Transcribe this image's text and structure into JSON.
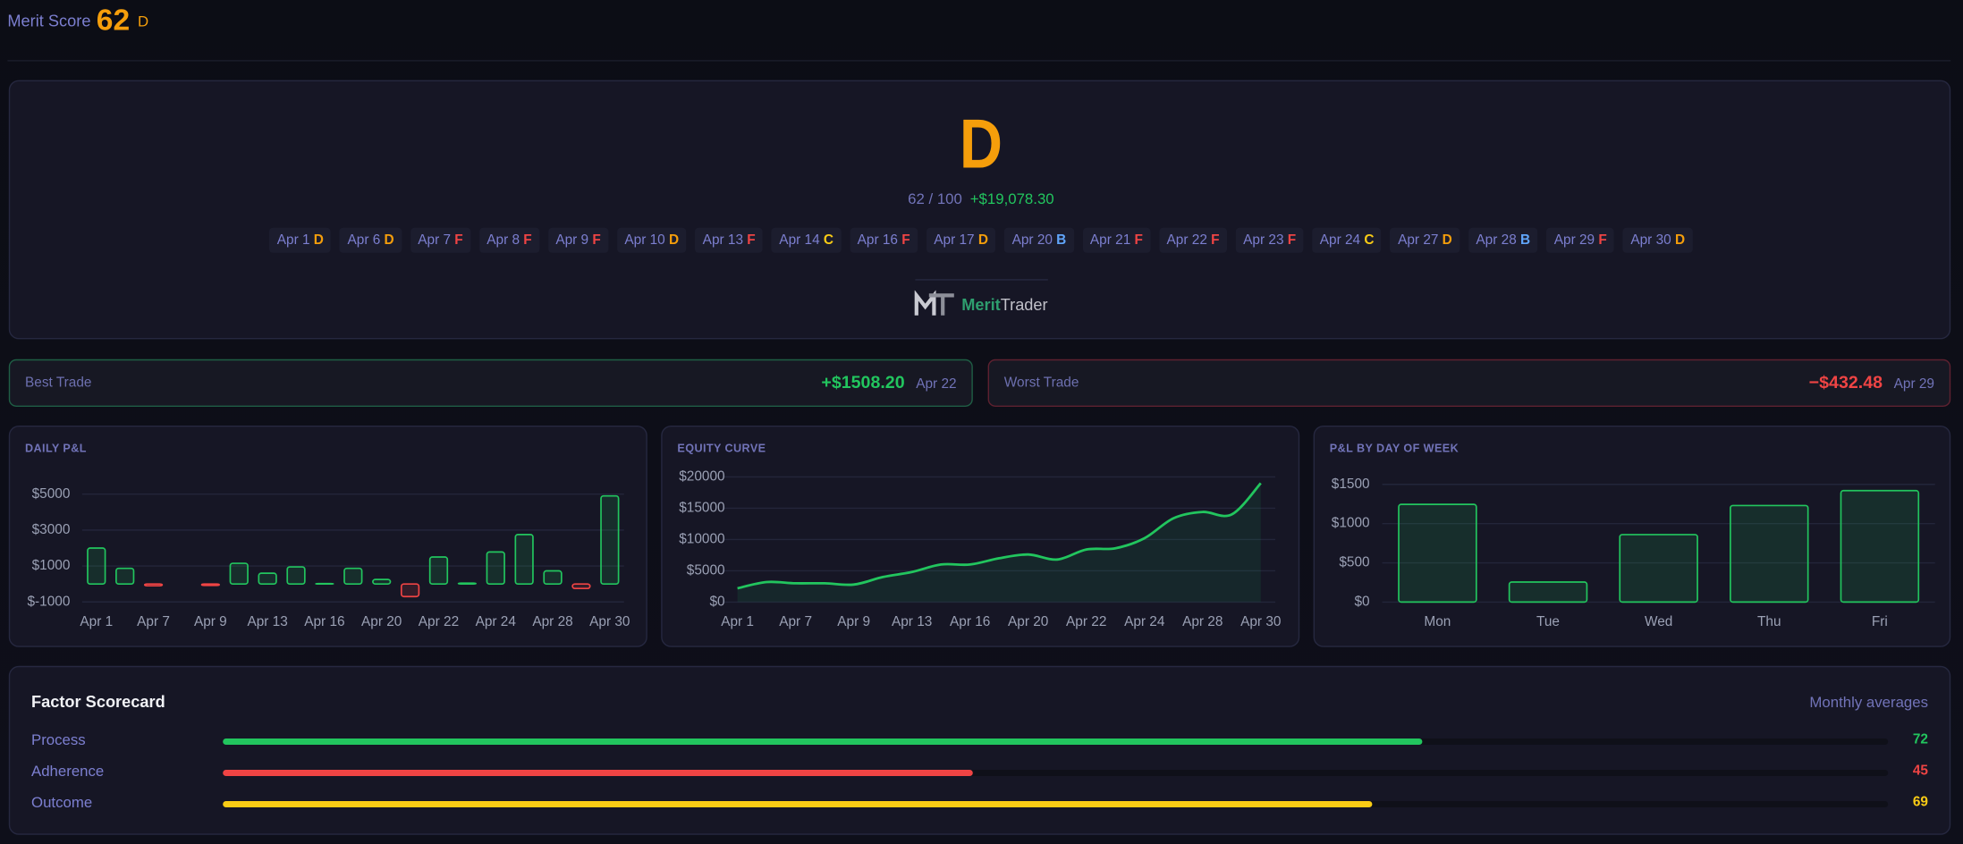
{
  "header": {
    "label": "Merit Score",
    "score": 62,
    "grade": "D"
  },
  "grade_colors": {
    "B": "#60a5fa",
    "C": "#facc15",
    "D": "#f59e0b",
    "F": "#ef4444"
  },
  "grade_card": {
    "grade": "D",
    "score_text": "62 / 100",
    "pnl": "+$19,078.30",
    "days": [
      {
        "date": "Apr 1",
        "grade": "D"
      },
      {
        "date": "Apr 6",
        "grade": "D"
      },
      {
        "date": "Apr 7",
        "grade": "F"
      },
      {
        "date": "Apr 8",
        "grade": "F"
      },
      {
        "date": "Apr 9",
        "grade": "F"
      },
      {
        "date": "Apr 10",
        "grade": "D"
      },
      {
        "date": "Apr 13",
        "grade": "F"
      },
      {
        "date": "Apr 14",
        "grade": "C"
      },
      {
        "date": "Apr 16",
        "grade": "F"
      },
      {
        "date": "Apr 17",
        "grade": "D"
      },
      {
        "date": "Apr 20",
        "grade": "B"
      },
      {
        "date": "Apr 21",
        "grade": "F"
      },
      {
        "date": "Apr 22",
        "grade": "F"
      },
      {
        "date": "Apr 23",
        "grade": "F"
      },
      {
        "date": "Apr 24",
        "grade": "C"
      },
      {
        "date": "Apr 27",
        "grade": "D"
      },
      {
        "date": "Apr 28",
        "grade": "B"
      },
      {
        "date": "Apr 29",
        "grade": "F"
      },
      {
        "date": "Apr 30",
        "grade": "D"
      }
    ],
    "brand": {
      "bold": "Merit",
      "light": "Trader"
    }
  },
  "best_trade": {
    "label": "Best Trade",
    "value": "+$1508.20",
    "date": "Apr 22"
  },
  "worst_trade": {
    "label": "Worst Trade",
    "value": "−$432.48",
    "date": "Apr 29"
  },
  "chart_data": [
    {
      "type": "bar",
      "title": "DAILY P&L",
      "categories": [
        "Apr 1",
        null,
        "Apr 7",
        null,
        "Apr 9",
        null,
        "Apr 13",
        null,
        "Apr 16",
        null,
        "Apr 20",
        null,
        "Apr 22",
        null,
        "Apr 24",
        null,
        "Apr 28",
        null,
        "Apr 30"
      ],
      "values": [
        2000,
        870,
        -100,
        0,
        -80,
        1150,
        600,
        950,
        20,
        870,
        250,
        -700,
        1500,
        50,
        1780,
        2750,
        730,
        -250,
        4900
      ],
      "ylim": [
        -1000,
        5500
      ],
      "yticks": [
        {
          "value": -1000,
          "label": "$-1000"
        },
        {
          "value": 1000,
          "label": "$1000"
        },
        {
          "value": 3000,
          "label": "$3000"
        },
        {
          "value": 5000,
          "label": "$5000"
        }
      ],
      "positive_color": "#22c55e",
      "negative_color": "#ef4444",
      "grid": true
    },
    {
      "type": "line",
      "title": "EQUITY CURVE",
      "categories": [
        "Apr 1",
        null,
        "Apr 7",
        null,
        "Apr 9",
        null,
        "Apr 13",
        null,
        "Apr 16",
        null,
        "Apr 20",
        null,
        "Apr 22",
        null,
        "Apr 24",
        null,
        "Apr 28",
        null,
        "Apr 30"
      ],
      "values": [
        2200,
        3200,
        3000,
        3000,
        2800,
        4000,
        4800,
        6000,
        6000,
        7000,
        7600,
        6800,
        8400,
        8600,
        10200,
        13400,
        14400,
        14000,
        19000
      ],
      "ylim": [
        0,
        20000
      ],
      "yticks": [
        {
          "value": 0,
          "label": "$0"
        },
        {
          "value": 5000,
          "label": "$5000"
        },
        {
          "value": 10000,
          "label": "$10000"
        },
        {
          "value": 15000,
          "label": "$15000"
        },
        {
          "value": 20000,
          "label": "$20000"
        }
      ],
      "color": "#22c55e",
      "grid": true
    },
    {
      "type": "bar",
      "title": "P&L BY DAY OF WEEK",
      "categories": [
        "Mon",
        "Tue",
        "Wed",
        "Thu",
        "Fri"
      ],
      "values": [
        1245,
        255,
        860,
        1230,
        1420
      ],
      "ylim": [
        0,
        1600
      ],
      "yticks": [
        {
          "value": 0,
          "label": "$0"
        },
        {
          "value": 500,
          "label": "$500"
        },
        {
          "value": 1000,
          "label": "$1000"
        },
        {
          "value": 1500,
          "label": "$1500"
        }
      ],
      "positive_color": "#22c55e",
      "negative_color": "#ef4444",
      "grid": true
    }
  ],
  "scorecard": {
    "title": "Factor Scorecard",
    "note": "Monthly averages",
    "xlim": [
      0,
      100
    ],
    "rows": [
      {
        "name": "Process",
        "value": 72,
        "color": "#22c55e"
      },
      {
        "name": "Adherence",
        "value": 45,
        "color": "#ef4444"
      },
      {
        "name": "Outcome",
        "value": 69,
        "color": "#facc15"
      }
    ]
  }
}
